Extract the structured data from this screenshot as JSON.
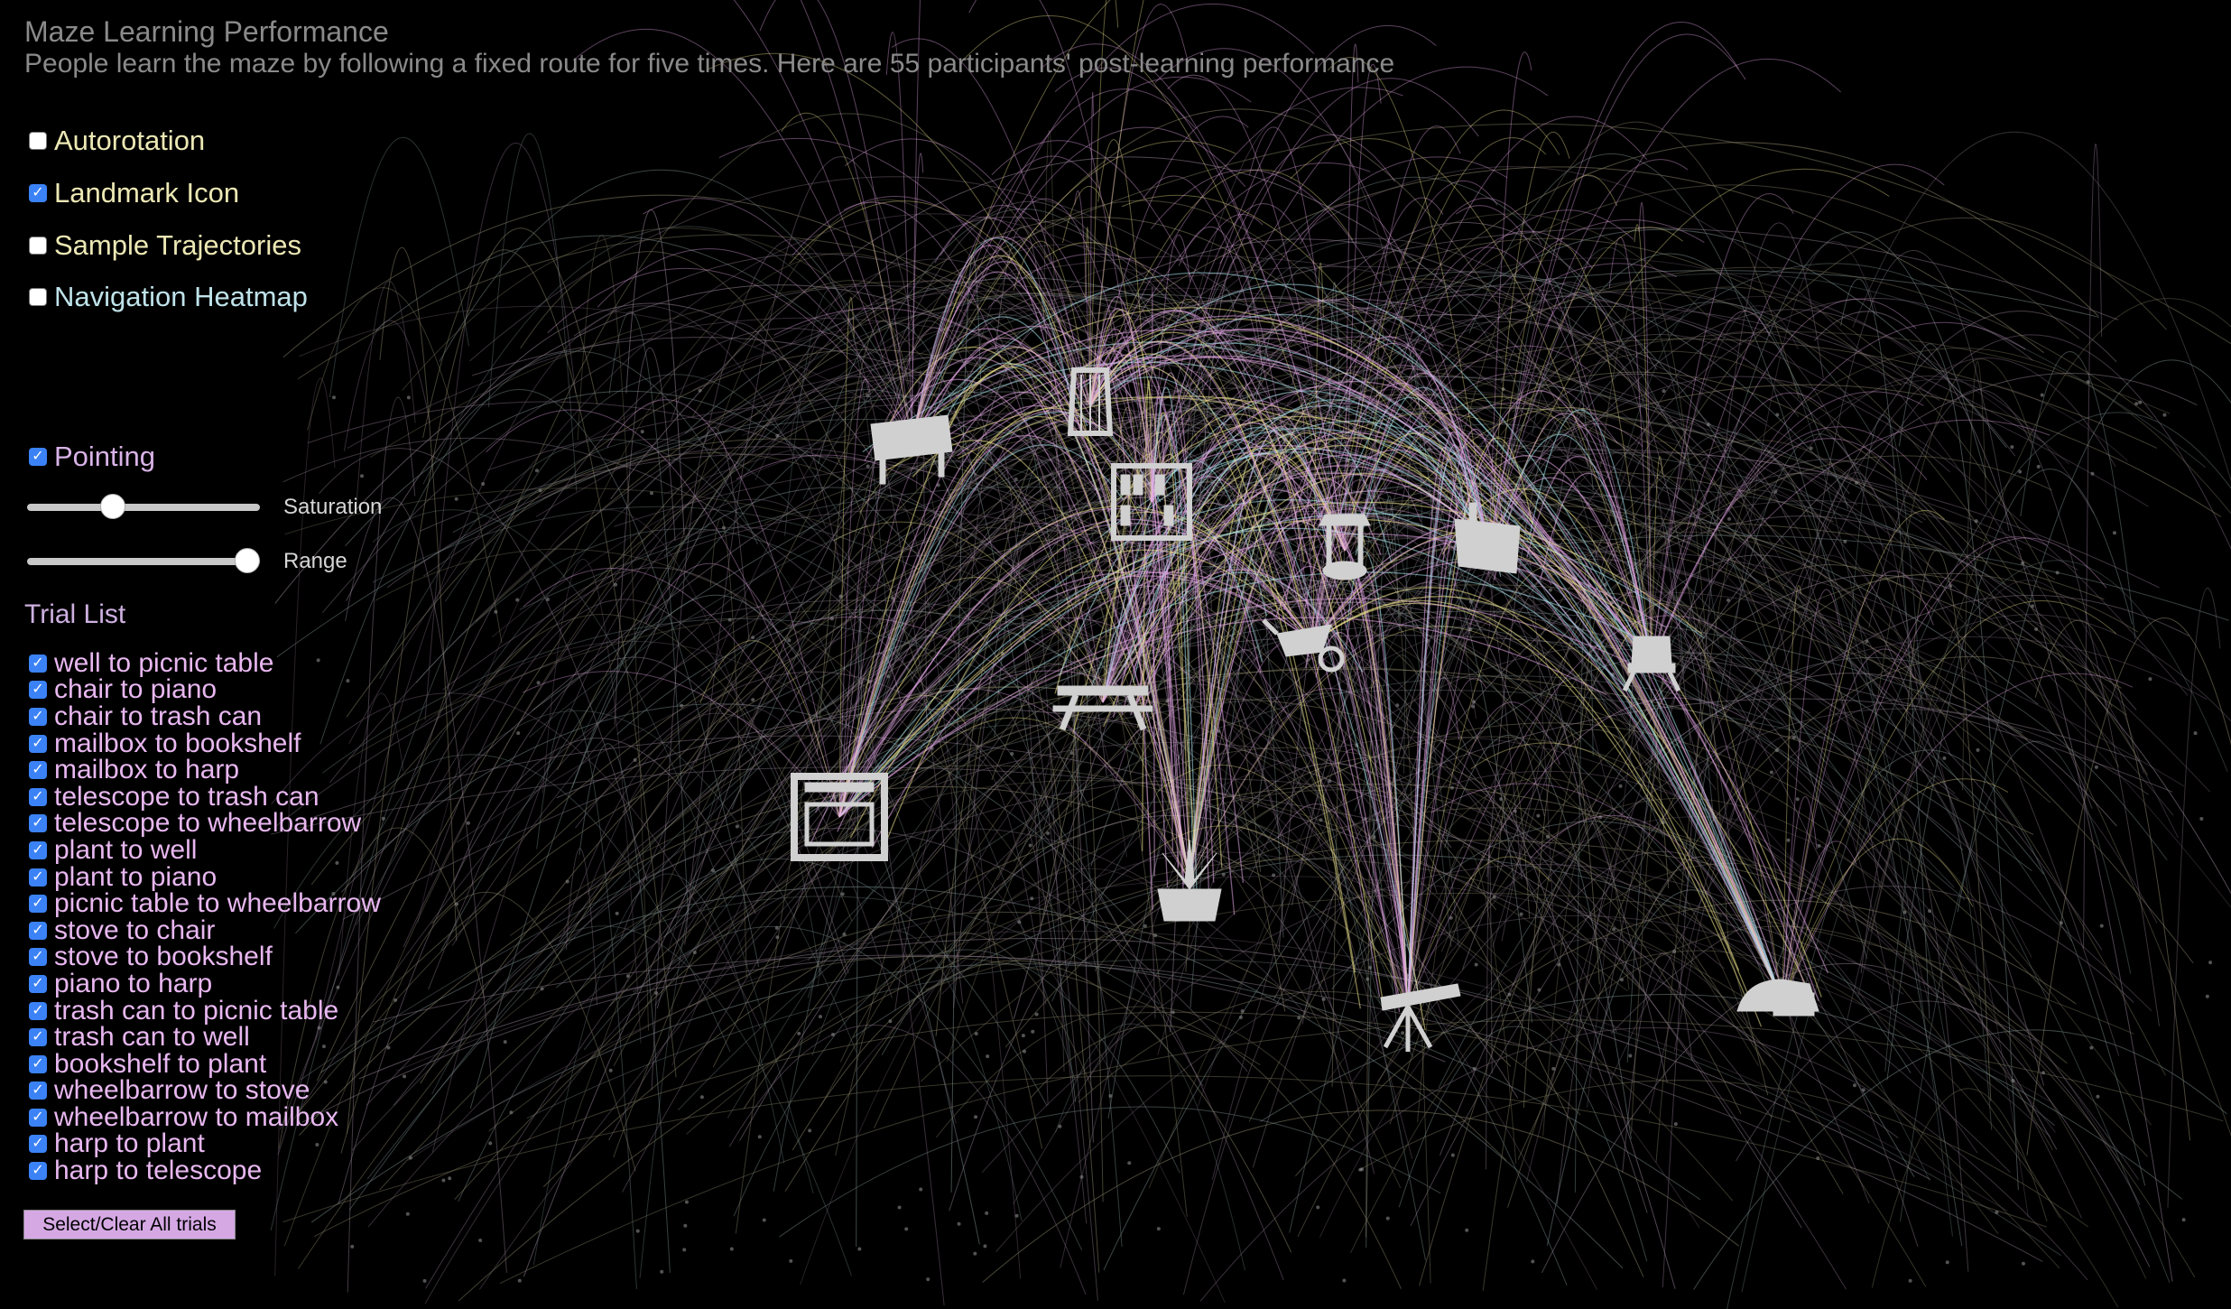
{
  "header": {
    "title": "Maze Learning Performance",
    "subtitle": "People learn the maze by following a fixed route for five times. Here are 55 participants' post-learning performance"
  },
  "options": [
    {
      "label": "Autorotation",
      "checked": false
    },
    {
      "label": "Landmark Icon",
      "checked": true
    },
    {
      "label": "Sample Trajectories",
      "checked": false
    },
    {
      "label": "Navigation Heatmap",
      "checked": false
    }
  ],
  "pointing": {
    "label": "Pointing",
    "checked": true
  },
  "sliders": {
    "saturation": {
      "label": "Saturation",
      "value": 0.35
    },
    "range": {
      "label": "Range",
      "value": 1.0
    }
  },
  "trial_list": {
    "title": "Trial List",
    "items": [
      {
        "label": "well to picnic table",
        "checked": true
      },
      {
        "label": "chair to piano",
        "checked": true
      },
      {
        "label": "chair to trash can",
        "checked": true
      },
      {
        "label": "mailbox to bookshelf",
        "checked": true
      },
      {
        "label": "mailbox to harp",
        "checked": true
      },
      {
        "label": "telescope to trash can",
        "checked": true
      },
      {
        "label": "telescope to wheelbarrow",
        "checked": true
      },
      {
        "label": "plant to well",
        "checked": true
      },
      {
        "label": "plant to piano",
        "checked": true
      },
      {
        "label": "picnic table to wheelbarrow",
        "checked": true
      },
      {
        "label": "stove to chair",
        "checked": true
      },
      {
        "label": "stove to bookshelf",
        "checked": true
      },
      {
        "label": "piano to harp",
        "checked": true
      },
      {
        "label": "trash can to picnic table",
        "checked": true
      },
      {
        "label": "trash can to well",
        "checked": true
      },
      {
        "label": "bookshelf to plant",
        "checked": true
      },
      {
        "label": "wheelbarrow to stove",
        "checked": true
      },
      {
        "label": "wheelbarrow to mailbox",
        "checked": true
      },
      {
        "label": "harp to plant",
        "checked": true
      },
      {
        "label": "harp to telescope",
        "checked": true
      }
    ],
    "select_all_label": "Select/Clear All trials"
  },
  "landmarks": [
    {
      "name": "piano",
      "icon": "piano-icon"
    },
    {
      "name": "harp",
      "icon": "harp-icon"
    },
    {
      "name": "bookshelf",
      "icon": "bookshelf-icon"
    },
    {
      "name": "well",
      "icon": "well-icon"
    },
    {
      "name": "trash can",
      "icon": "trash-can-icon"
    },
    {
      "name": "wheelbarrow",
      "icon": "wheelbarrow-icon"
    },
    {
      "name": "chair",
      "icon": "chair-icon"
    },
    {
      "name": "picnic table",
      "icon": "picnic-table-icon"
    },
    {
      "name": "stove",
      "icon": "stove-icon"
    },
    {
      "name": "plant",
      "icon": "plant-icon"
    },
    {
      "name": "telescope",
      "icon": "telescope-icon"
    },
    {
      "name": "mailbox",
      "icon": "mailbox-icon"
    }
  ],
  "colors": {
    "background": "#000000",
    "arc_pink": "#e6a8e8",
    "arc_yellow": "#f0e68c",
    "arc_cyan": "#a8e6ef",
    "arc_faint": "#6b5a6b",
    "icon": "#d0d0d0",
    "checkbox_checked": "#3b82f6"
  }
}
